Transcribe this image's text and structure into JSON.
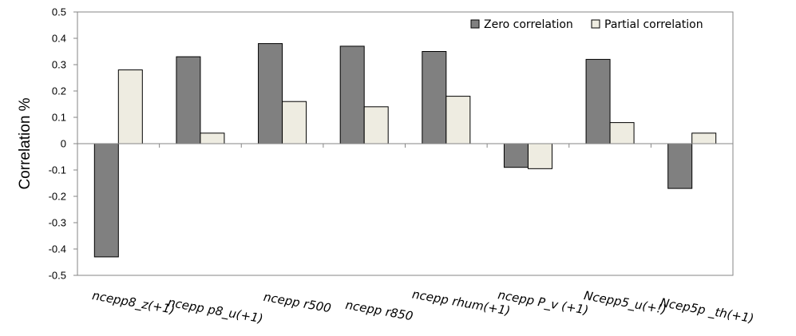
{
  "chart_data": {
    "type": "bar",
    "title": "",
    "xlabel": "",
    "ylabel": "Correlation %",
    "ylim": [
      -0.5,
      0.5
    ],
    "ytick_step": 0.1,
    "yticks": [
      "-0.5",
      "-0.4",
      "-0.3",
      "-0.2",
      "-0.1",
      "0",
      "0.1",
      "0.2",
      "0.3",
      "0.4",
      "0.5"
    ],
    "categories": [
      "ncepp8_z(+1)",
      "ncepp p8_u(+1)",
      "ncepp r500",
      "ncepp r850",
      "ncepp rhum(+1)",
      "ncepp P_v (+1)",
      "Ncepp5_u(+!)",
      "Ncep5p _th(+1)"
    ],
    "series": [
      {
        "name": "Zero correlation",
        "color": "#808080",
        "values": [
          -0.43,
          0.33,
          0.38,
          0.37,
          0.35,
          -0.09,
          0.32,
          -0.17
        ]
      },
      {
        "name": "Partial correlation",
        "color": "#eeece1",
        "values": [
          0.28,
          0.04,
          0.16,
          0.14,
          0.18,
          -0.095,
          0.08,
          0.04
        ]
      }
    ],
    "legend_position": "top-right",
    "grid": false
  }
}
